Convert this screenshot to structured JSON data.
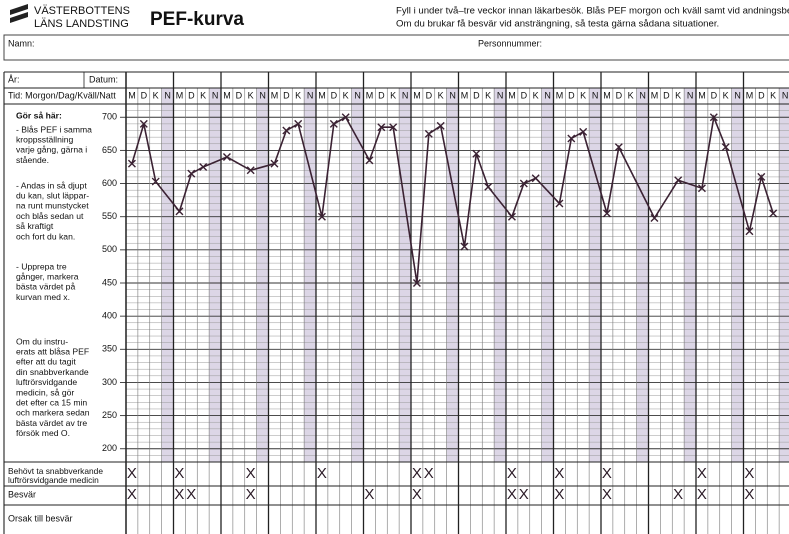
{
  "header": {
    "org": [
      "VÄSTERBOTTENS",
      "LÄNS LANDSTING"
    ],
    "title": "PEF-kurva",
    "instructions": [
      "Fyll i under två–tre veckor innan läkarbesök. Blås PEF morgon och kväll samt vid andningsbesvär.",
      "Om du brukar få besvär vid ansträngning, så testa gärna sådana situationer."
    ]
  },
  "fields": {
    "name": "Namn:",
    "personal_number": "Personnummer:",
    "year": "År:",
    "date": "Datum:",
    "time": "Tid: Morgon/Dag/Kväll/Natt",
    "cause": "Orsak till besvär"
  },
  "guide": {
    "heading": "Gör så här:",
    "blocks": [
      [
        "- Blås PEF i samma",
        "kroppsställning",
        "varje gång, gärna i",
        "stående."
      ],
      [
        "- Andas in så djupt",
        "du kan, slut läppar-",
        "na runt munstycket",
        "och blås sedan ut",
        "så kraftigt",
        "och fort du kan."
      ],
      [
        "- Upprepa tre",
        "gånger, markera",
        "bästa värdet på",
        "kurvan med x."
      ],
      [
        "Om du instru-",
        "erats att blåsa PEF",
        "efter att du tagit",
        "din snabbverkande",
        "luftrörsvidgande",
        "medicin, så gör",
        "det efter ca 15 min",
        "och markera sedan",
        "bästa värdet av tre",
        "försök med O."
      ]
    ]
  },
  "chart_data": {
    "type": "line",
    "color": "#3b2233",
    "ylim": [
      180,
      720
    ],
    "yticks": [
      200,
      250,
      300,
      350,
      400,
      450,
      500,
      550,
      600,
      650,
      700
    ],
    "grid": true,
    "slots": [
      "M",
      "D",
      "K",
      "N"
    ],
    "days": [
      {
        "M": 630,
        "D": 690,
        "K": 603
      },
      {
        "M": 558,
        "D": 615,
        "K": 625
      },
      {
        "M": 640,
        "K": 620
      },
      {
        "M": 630,
        "D": 680,
        "K": 690
      },
      {
        "M": 550,
        "D": 690,
        "K": 700
      },
      {
        "M": 635,
        "D": 685,
        "K": 685
      },
      {
        "M": 450,
        "D": 675,
        "K": 687
      },
      {
        "M": 505,
        "D": 645,
        "K": 595
      },
      {
        "M": 550,
        "D": 600,
        "K": 608
      },
      {
        "M": 570,
        "D": 668,
        "K": 678
      },
      {
        "M": 555,
        "D": 655
      },
      {
        "M": 548,
        "K": 605
      },
      {
        "M": 593,
        "D": 700,
        "K": 655
      },
      {
        "M": 528,
        "D": 610,
        "K": 555
      }
    ]
  },
  "rows": {
    "medicine": {
      "label": [
        "Behövt ta snabbverkande",
        "luftrörsvidgande medicin"
      ],
      "marks": [
        {
          "M": "X"
        },
        {
          "M": "X"
        },
        {
          "K": "X"
        },
        {},
        {
          "M": "X"
        },
        {},
        {
          "M": "X",
          "D": "X"
        },
        {},
        {
          "M": "X"
        },
        {
          "M": "X"
        },
        {
          "M": "X"
        },
        {},
        {
          "M": "X"
        },
        {
          "M": "X"
        }
      ]
    },
    "symptoms": {
      "label": [
        "Besvär"
      ],
      "marks": [
        {
          "M": "X"
        },
        {
          "M": "X",
          "D": "X"
        },
        {
          "K": "X"
        },
        {},
        {},
        {
          "M": "X"
        },
        {
          "M": "X"
        },
        {},
        {
          "M": "X",
          "D": "X"
        },
        {
          "M": "X"
        },
        {
          "M": "X"
        },
        {
          "K": "X"
        },
        {
          "M": "X"
        },
        {
          "M": "X"
        }
      ]
    }
  }
}
